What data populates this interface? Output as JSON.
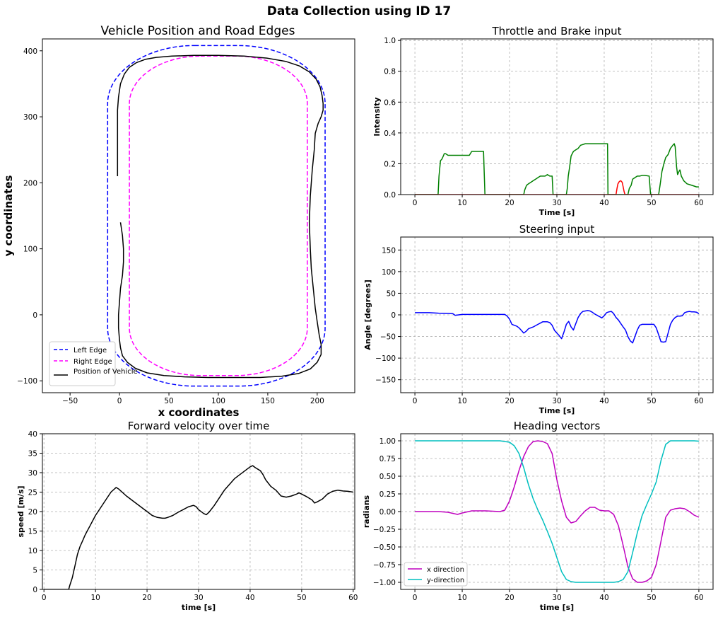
{
  "figure": {
    "title": "Data Collection using ID 17"
  },
  "colors": {
    "left_edge": "#0000ff",
    "right_edge": "#ff00ff",
    "vehicle": "#000000",
    "throttle": "#008000",
    "brake": "#ff0000",
    "steering": "#0000ff",
    "velocity": "#000000",
    "heading_x": "#bf00bf",
    "heading_y": "#00bfbf",
    "grid": "#b0b0b0"
  },
  "chart_data": [
    {
      "id": "position",
      "type": "line",
      "title": "Vehicle Position and Road Edges",
      "xlabel": "x coordinates",
      "ylabel": "y coordinates",
      "xlim": [
        -78,
        238
      ],
      "ylim": [
        -118,
        418
      ],
      "xticks": [
        -50,
        0,
        50,
        100,
        150,
        200
      ],
      "yticks": [
        -100,
        0,
        100,
        200,
        300,
        400
      ],
      "grid": false,
      "legend": "lower-left",
      "track": {
        "left_edge": {
          "x_min": -12,
          "x_max": 208,
          "y_min": -108,
          "y_max": 408,
          "corner_radius": 88
        },
        "right_edge": {
          "x_min": 10,
          "x_max": 190,
          "y_min": -92,
          "y_max": 392,
          "corner_radius": 72
        }
      },
      "series": [
        {
          "name": "Left Edge",
          "style": "dashed",
          "color_key": "left_edge"
        },
        {
          "name": "Right Edge",
          "style": "dashed",
          "color_key": "right_edge"
        },
        {
          "name": "Position of Vehicle",
          "style": "solid",
          "color_key": "vehicle",
          "x": [
            1,
            3,
            4,
            4,
            3,
            1,
            0,
            -1,
            -1,
            0,
            1,
            3,
            8,
            16,
            28,
            45,
            66,
            90,
            116,
            142,
            164,
            181,
            193,
            200,
            204,
            204,
            202,
            200,
            198,
            196,
            194,
            193,
            192,
            193,
            195,
            197,
            198,
            201,
            204,
            206,
            206,
            205,
            203,
            199,
            192,
            182,
            168,
            149,
            126,
            100,
            75,
            53,
            37,
            26,
            17,
            10,
            5,
            1,
            -1,
            -2,
            -2,
            -2,
            -2
          ],
          "y": [
            140,
            120,
            100,
            80,
            60,
            40,
            20,
            0,
            -20,
            -38,
            -50,
            -62,
            -72,
            -81,
            -88,
            -92,
            -94,
            -95,
            -95,
            -95,
            -93,
            -89,
            -82,
            -72,
            -60,
            -45,
            -30,
            -10,
            10,
            40,
            70,
            100,
            140,
            180,
            220,
            250,
            275,
            290,
            300,
            310,
            320,
            332,
            345,
            357,
            368,
            377,
            384,
            389,
            392,
            393,
            393,
            392,
            390,
            387,
            382,
            375,
            365,
            350,
            330,
            310,
            280,
            250,
            210
          ]
        }
      ]
    },
    {
      "id": "throttle",
      "type": "line",
      "title": "Throttle and Brake input",
      "xlabel": "Time [s]",
      "ylabel": "Intensity",
      "xlim": [
        -3,
        63
      ],
      "ylim": [
        0,
        1.01
      ],
      "xticks": [
        0,
        10,
        20,
        30,
        40,
        50,
        60
      ],
      "yticks": [
        0.0,
        0.2,
        0.4,
        0.6,
        0.8,
        1.0
      ],
      "grid": true,
      "series": [
        {
          "color_key": "throttle",
          "x": [
            0,
            4.9,
            5.1,
            5.4,
            5.7,
            6.0,
            6.2,
            6.5,
            7.0,
            8.0,
            10.0,
            11.5,
            12.0,
            14.0,
            14.5,
            14.8,
            23.0,
            23.2,
            23.6,
            24.0,
            24.5,
            25.0,
            25.5,
            26.0,
            26.5,
            27.5,
            28.0,
            28.5,
            29.0,
            29.2,
            32.0,
            32.2,
            32.4,
            32.7,
            33.0,
            33.5,
            34.0,
            34.5,
            35.0,
            36.0,
            38.0,
            40.0,
            40.7,
            40.8,
            45.0,
            45.3,
            45.7,
            46.0,
            46.5,
            47.0,
            47.5,
            48.0,
            48.5,
            49.5,
            49.8,
            51.5,
            51.8,
            52.2,
            52.6,
            53.0,
            53.5,
            54.0,
            54.5,
            54.8,
            55.0,
            55.3,
            55.5,
            55.8,
            56.0,
            56.3,
            56.8,
            57.5,
            58.5,
            59.5,
            60.0
          ],
          "y": [
            0,
            0,
            0.12,
            0.22,
            0.23,
            0.25,
            0.265,
            0.265,
            0.255,
            0.255,
            0.255,
            0.255,
            0.28,
            0.28,
            0.28,
            0,
            0,
            0.03,
            0.06,
            0.07,
            0.08,
            0.09,
            0.1,
            0.11,
            0.12,
            0.12,
            0.13,
            0.12,
            0.12,
            0,
            0,
            0.04,
            0.12,
            0.18,
            0.25,
            0.28,
            0.29,
            0.3,
            0.32,
            0.33,
            0.33,
            0.33,
            0.33,
            0,
            0,
            0.04,
            0.06,
            0.1,
            0.11,
            0.12,
            0.12,
            0.125,
            0.125,
            0.12,
            0,
            0,
            0.06,
            0.15,
            0.2,
            0.24,
            0.26,
            0.3,
            0.32,
            0.33,
            0.31,
            0.18,
            0.13,
            0.15,
            0.16,
            0.12,
            0.09,
            0.07,
            0.06,
            0.05,
            0.05
          ]
        },
        {
          "color_key": "brake",
          "x": [
            0,
            42.5,
            42.7,
            42.9,
            43.2,
            43.5,
            43.8,
            44.0,
            44.2,
            44.4,
            60.0
          ],
          "y": [
            0,
            0,
            0.04,
            0.07,
            0.085,
            0.09,
            0.08,
            0.05,
            0.02,
            0,
            0
          ]
        }
      ]
    },
    {
      "id": "steering",
      "type": "line",
      "title": "Steering input",
      "xlabel": "Time [s]",
      "ylabel": "Angle [degrees]",
      "xlim": [
        -3,
        63
      ],
      "ylim": [
        -180,
        180
      ],
      "xticks": [
        0,
        10,
        20,
        30,
        40,
        50,
        60
      ],
      "yticks": [
        -150,
        -100,
        -50,
        0,
        50,
        100,
        150
      ],
      "grid": true,
      "series": [
        {
          "color_key": "steering",
          "x": [
            0,
            3,
            5,
            8,
            8.5,
            10,
            12,
            14,
            16,
            18,
            19,
            19.5,
            20,
            20.5,
            21,
            21.5,
            22,
            22.5,
            23,
            23.5,
            24,
            25,
            26,
            27,
            28,
            28.5,
            29,
            29.5,
            30,
            30.5,
            31,
            31.5,
            32,
            32.5,
            33,
            33.5,
            34,
            34.5,
            35,
            35.5,
            36,
            36.5,
            37,
            37.5,
            38,
            38.5,
            39,
            39.5,
            40,
            40.5,
            41,
            41.5,
            42,
            42.5,
            43,
            43.5,
            44,
            44.5,
            45,
            45.5,
            46,
            46.5,
            47,
            47.5,
            48,
            48.5,
            49,
            49.5,
            50,
            50.5,
            51,
            51.5,
            52,
            52.5,
            53,
            53.5,
            54,
            54.5,
            55,
            55.5,
            56,
            56.5,
            57,
            57.5,
            58,
            58.5,
            59,
            59.5,
            60
          ],
          "y": [
            5,
            5,
            4,
            3,
            -1,
            1,
            1,
            1,
            1,
            1,
            1,
            -3,
            -10,
            -22,
            -24,
            -26,
            -30,
            -36,
            -42,
            -38,
            -32,
            -28,
            -22,
            -16,
            -16,
            -18,
            -24,
            -36,
            -42,
            -48,
            -55,
            -40,
            -22,
            -15,
            -28,
            -35,
            -20,
            -6,
            3,
            8,
            9,
            10,
            9,
            6,
            2,
            -1,
            -4,
            -7,
            -2,
            5,
            7,
            8,
            3,
            -6,
            -12,
            -20,
            -28,
            -35,
            -50,
            -60,
            -65,
            -50,
            -35,
            -24,
            -22,
            -22,
            -22,
            -22,
            -22,
            -22,
            -30,
            -46,
            -62,
            -63,
            -62,
            -42,
            -22,
            -12,
            -6,
            -3,
            -3,
            -2,
            5,
            7,
            8,
            7,
            7,
            6,
            3
          ]
        }
      ]
    },
    {
      "id": "velocity",
      "type": "line",
      "title": "Forward velocity over time",
      "xlabel": "time [s]",
      "ylabel": "speed [m/s]",
      "xlim": [
        -0.3,
        60.3
      ],
      "ylim": [
        0,
        40
      ],
      "xticks": [
        0,
        10,
        20,
        30,
        40,
        50,
        60
      ],
      "yticks": [
        0,
        5,
        10,
        15,
        20,
        25,
        30,
        35,
        40
      ],
      "grid": true,
      "series": [
        {
          "color_key": "velocity",
          "x": [
            0,
            4.8,
            5.0,
            5.5,
            6.0,
            6.5,
            7.0,
            7.5,
            8.0,
            9.0,
            10.0,
            11.0,
            12.0,
            13.0,
            14.0,
            14.5,
            15.0,
            16.0,
            17.0,
            18.0,
            19.0,
            20.0,
            21.0,
            22.0,
            23.0,
            23.5,
            24.0,
            25.0,
            26.0,
            27.0,
            28.0,
            29.0,
            29.5,
            30.0,
            31.0,
            31.5,
            32.0,
            33.0,
            34.0,
            35.0,
            36.0,
            37.0,
            38.0,
            39.0,
            40.0,
            40.5,
            41.0,
            42.0,
            42.5,
            43.0,
            44.0,
            45.0,
            46.0,
            47.0,
            48.0,
            49.0,
            49.5,
            50.0,
            51.0,
            52.0,
            52.5,
            53.0,
            54.0,
            55.0,
            56.0,
            57.0,
            58.0,
            59.0,
            60.0
          ],
          "y": [
            0,
            0,
            1,
            3,
            6,
            9,
            11,
            12.5,
            14,
            16.5,
            19,
            21,
            23,
            25,
            26.2,
            25.8,
            25.2,
            24,
            23,
            22,
            21,
            20,
            19,
            18.5,
            18.3,
            18.3,
            18.5,
            19,
            19.8,
            20.5,
            21.2,
            21.6,
            21.3,
            20.5,
            19.5,
            19.2,
            19.8,
            21.5,
            23.5,
            25.5,
            27,
            28.5,
            29.5,
            30.5,
            31.5,
            31.8,
            31.3,
            30.5,
            29.5,
            28.2,
            26.5,
            25.5,
            24,
            23.7,
            24,
            24.5,
            24.8,
            24.5,
            23.8,
            23,
            22.2,
            22.5,
            23.2,
            24.5,
            25.2,
            25.5,
            25.3,
            25.2,
            25
          ]
        }
      ]
    },
    {
      "id": "heading",
      "type": "line",
      "title": "Heading vectors",
      "xlabel": "time [s]",
      "ylabel": "radians",
      "xlim": [
        -3,
        63
      ],
      "ylim": [
        -1.1,
        1.1
      ],
      "xticks": [
        0,
        10,
        20,
        30,
        40,
        50,
        60
      ],
      "yticks": [
        -1.0,
        -0.75,
        -0.5,
        -0.25,
        0.0,
        0.25,
        0.5,
        0.75,
        1.0
      ],
      "grid": true,
      "legend": "lower-left",
      "series": [
        {
          "name": "x direction",
          "color_key": "heading_x",
          "x": [
            0,
            5,
            7,
            9,
            10,
            12,
            15,
            18,
            19,
            20,
            21,
            22,
            23,
            24,
            25,
            26,
            27,
            28,
            29,
            30,
            31,
            32,
            33,
            34,
            35,
            36,
            37,
            38,
            39,
            40,
            41,
            42,
            43,
            44,
            45,
            46,
            47,
            48,
            49,
            50,
            51,
            52,
            53,
            54,
            55,
            56,
            57,
            58,
            59,
            60
          ],
          "y": [
            0,
            0,
            -0.01,
            -0.04,
            -0.02,
            0.01,
            0.01,
            0,
            0.02,
            0.15,
            0.35,
            0.58,
            0.78,
            0.92,
            0.99,
            1.0,
            0.99,
            0.96,
            0.82,
            0.45,
            0.15,
            -0.08,
            -0.16,
            -0.14,
            -0.06,
            0.01,
            0.06,
            0.06,
            0.02,
            0.01,
            0.01,
            -0.04,
            -0.2,
            -0.48,
            -0.78,
            -0.95,
            -1.0,
            -1.0,
            -0.98,
            -0.93,
            -0.75,
            -0.42,
            -0.08,
            0.02,
            0.04,
            0.05,
            0.04,
            0,
            -0.05,
            -0.08
          ]
        },
        {
          "name": "y-direction",
          "color_key": "heading_y",
          "x": [
            0,
            10,
            18,
            19,
            20,
            21,
            22,
            23,
            24,
            25,
            26,
            27,
            28,
            29,
            30,
            31,
            32,
            33,
            34,
            35,
            36,
            37,
            38,
            39,
            40,
            41,
            42,
            43,
            44,
            45,
            46,
            47,
            48,
            49,
            50,
            51,
            52,
            53,
            54,
            55,
            56,
            57,
            58,
            59,
            60
          ],
          "y": [
            1,
            1,
            1,
            0.99,
            0.98,
            0.93,
            0.82,
            0.62,
            0.38,
            0.18,
            0.02,
            -0.12,
            -0.28,
            -0.45,
            -0.65,
            -0.85,
            -0.96,
            -0.99,
            -1.0,
            -1.0,
            -1.0,
            -1.0,
            -1.0,
            -1.0,
            -1.0,
            -1.0,
            -1.0,
            -0.99,
            -0.96,
            -0.85,
            -0.58,
            -0.3,
            -0.06,
            0.1,
            0.25,
            0.42,
            0.72,
            0.95,
            1.0,
            1.0,
            1.0,
            1.0,
            1.0,
            1.0,
            0.995
          ]
        }
      ]
    }
  ]
}
